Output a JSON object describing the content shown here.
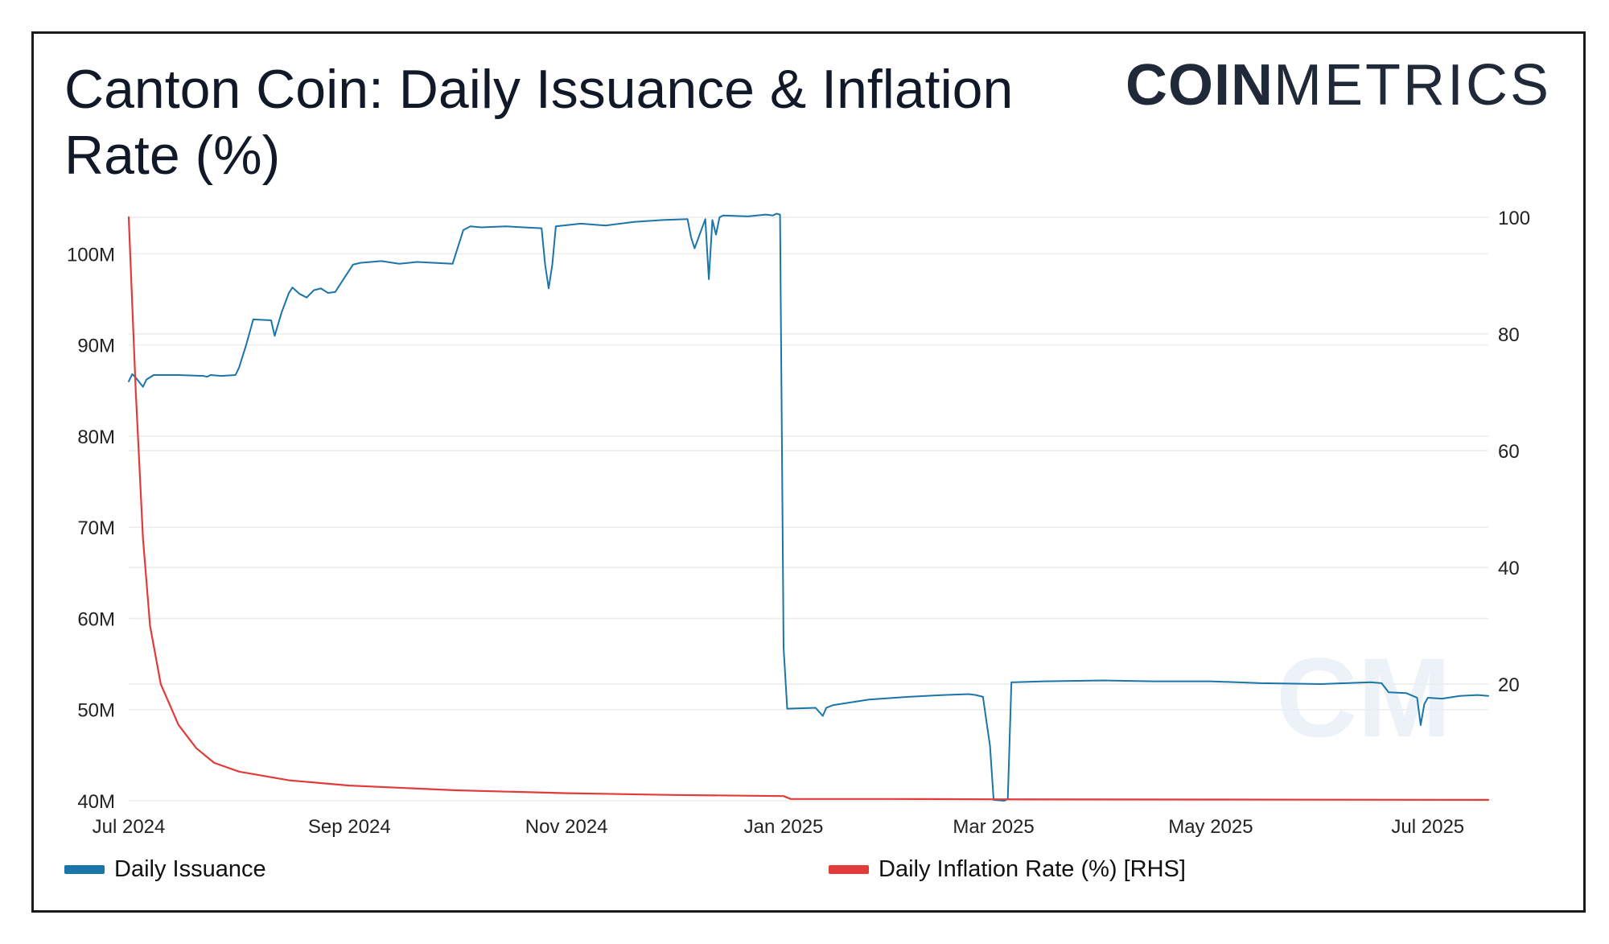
{
  "title": "Canton Coin: Daily Issuance & Inflation Rate (%)",
  "brand": {
    "bold": "COIN",
    "light": "METRICS",
    "watermark": "CM"
  },
  "colors": {
    "issuance": "#1a75a8",
    "inflation": "#e23b3b",
    "grid": "#ececec",
    "text": "#111827"
  },
  "legend": {
    "issuance_label": "Daily Issuance",
    "inflation_label": "Daily Inflation Rate (%) [RHS]"
  },
  "chart_data": {
    "type": "line",
    "title": "Canton Coin: Daily Issuance & Inflation Rate (%)",
    "x_axis": {
      "type": "date",
      "range": [
        "2024-07-01",
        "2025-07-18"
      ],
      "ticks": [
        {
          "date": "2024-07-01",
          "label": "Jul 2024"
        },
        {
          "date": "2024-09-01",
          "label": "Sep 2024"
        },
        {
          "date": "2024-11-01",
          "label": "Nov 2024"
        },
        {
          "date": "2025-01-01",
          "label": "Jan 2025"
        },
        {
          "date": "2025-03-01",
          "label": "Mar 2025"
        },
        {
          "date": "2025-05-01",
          "label": "May 2025"
        },
        {
          "date": "2025-07-01",
          "label": "Jul 2025"
        }
      ]
    },
    "y_left": {
      "range": [
        40000000,
        104000000
      ],
      "ticks": [
        {
          "value": 40000000,
          "label": "40M"
        },
        {
          "value": 50000000,
          "label": "50M"
        },
        {
          "value": 60000000,
          "label": "60M"
        },
        {
          "value": 70000000,
          "label": "70M"
        },
        {
          "value": 80000000,
          "label": "80M"
        },
        {
          "value": 90000000,
          "label": "90M"
        },
        {
          "value": 100000000,
          "label": "100M"
        }
      ]
    },
    "y_right": {
      "range": [
        0,
        100
      ],
      "ticks": [
        {
          "value": 20,
          "label": "20"
        },
        {
          "value": 40,
          "label": "40"
        },
        {
          "value": 60,
          "label": "60"
        },
        {
          "value": 80,
          "label": "80"
        },
        {
          "value": 100,
          "label": "100"
        }
      ]
    },
    "grid": true,
    "legend_position": "bottom",
    "series": [
      {
        "name": "Daily Issuance",
        "axis": "left",
        "x": [
          "2024-07-01",
          "2024-07-02",
          "2024-07-03",
          "2024-07-04",
          "2024-07-05",
          "2024-07-06",
          "2024-07-08",
          "2024-07-15",
          "2024-07-22",
          "2024-07-23",
          "2024-07-24",
          "2024-07-27",
          "2024-07-31",
          "2024-08-01",
          "2024-08-03",
          "2024-08-05",
          "2024-08-10",
          "2024-08-11",
          "2024-08-13",
          "2024-08-15",
          "2024-08-16",
          "2024-08-18",
          "2024-08-20",
          "2024-08-22",
          "2024-08-24",
          "2024-08-26",
          "2024-08-28",
          "2024-09-02",
          "2024-09-04",
          "2024-09-10",
          "2024-09-15",
          "2024-09-20",
          "2024-09-25",
          "2024-09-30",
          "2024-10-03",
          "2024-10-05",
          "2024-10-08",
          "2024-10-15",
          "2024-10-20",
          "2024-10-25",
          "2024-10-26",
          "2024-10-27",
          "2024-10-28",
          "2024-10-29",
          "2024-11-05",
          "2024-11-12",
          "2024-11-20",
          "2024-11-28",
          "2024-12-05",
          "2024-12-06",
          "2024-12-07",
          "2024-12-10",
          "2024-12-11",
          "2024-12-12",
          "2024-12-13",
          "2024-12-14",
          "2024-12-15",
          "2024-12-22",
          "2024-12-27",
          "2024-12-29",
          "2024-12-30",
          "2024-12-31",
          "2025-01-01",
          "2025-01-02",
          "2025-01-10",
          "2025-01-12",
          "2025-01-13",
          "2025-01-15",
          "2025-01-25",
          "2025-02-05",
          "2025-02-15",
          "2025-02-22",
          "2025-02-24",
          "2025-02-26",
          "2025-02-28",
          "2025-03-01",
          "2025-03-04",
          "2025-03-05",
          "2025-03-06",
          "2025-03-07",
          "2025-03-15",
          "2025-04-01",
          "2025-04-15",
          "2025-05-01",
          "2025-05-15",
          "2025-06-01",
          "2025-06-15",
          "2025-06-18",
          "2025-06-20",
          "2025-06-25",
          "2025-06-28",
          "2025-06-29",
          "2025-06-30",
          "2025-07-01",
          "2025-07-05",
          "2025-07-10",
          "2025-07-15",
          "2025-07-18"
        ],
        "values": [
          86000000,
          86800000,
          86400000,
          85900000,
          85400000,
          86200000,
          86700000,
          86700000,
          86600000,
          86500000,
          86700000,
          86600000,
          86700000,
          87500000,
          90000000,
          92800000,
          92700000,
          91000000,
          93600000,
          95700000,
          96300000,
          95600000,
          95200000,
          96000000,
          96200000,
          95700000,
          95800000,
          98800000,
          99000000,
          99200000,
          98900000,
          99100000,
          99000000,
          98900000,
          102600000,
          103000000,
          102900000,
          103000000,
          102900000,
          102800000,
          98800000,
          96200000,
          98800000,
          103000000,
          103300000,
          103100000,
          103500000,
          103700000,
          103800000,
          101800000,
          100600000,
          103800000,
          97200000,
          103700000,
          102100000,
          104000000,
          104200000,
          104100000,
          104300000,
          104200000,
          104400000,
          104300000,
          56800000,
          50100000,
          50200000,
          49300000,
          50200000,
          50500000,
          51100000,
          51400000,
          51600000,
          51700000,
          51600000,
          51400000,
          46000000,
          40100000,
          40000000,
          40200000,
          53000000,
          53000000,
          53100000,
          53200000,
          53100000,
          53100000,
          52900000,
          52800000,
          53000000,
          52900000,
          51900000,
          51800000,
          51300000,
          48300000,
          50600000,
          51300000,
          51200000,
          51500000,
          51600000,
          51500000
        ]
      },
      {
        "name": "Daily Inflation Rate (%) [RHS]",
        "axis": "right",
        "x": [
          "2024-07-01",
          "2024-07-03",
          "2024-07-05",
          "2024-07-07",
          "2024-07-10",
          "2024-07-15",
          "2024-07-20",
          "2024-07-25",
          "2024-08-01",
          "2024-08-15",
          "2024-09-01",
          "2024-10-01",
          "2024-11-01",
          "2024-12-01",
          "2025-01-01",
          "2025-01-03",
          "2025-02-01",
          "2025-03-01",
          "2025-05-01",
          "2025-07-18"
        ],
        "values": [
          100,
          70,
          45,
          30,
          20,
          13,
          9,
          6.5,
          5,
          3.5,
          2.6,
          1.8,
          1.3,
          1.0,
          0.8,
          0.3,
          0.3,
          0.25,
          0.2,
          0.15
        ]
      }
    ]
  }
}
